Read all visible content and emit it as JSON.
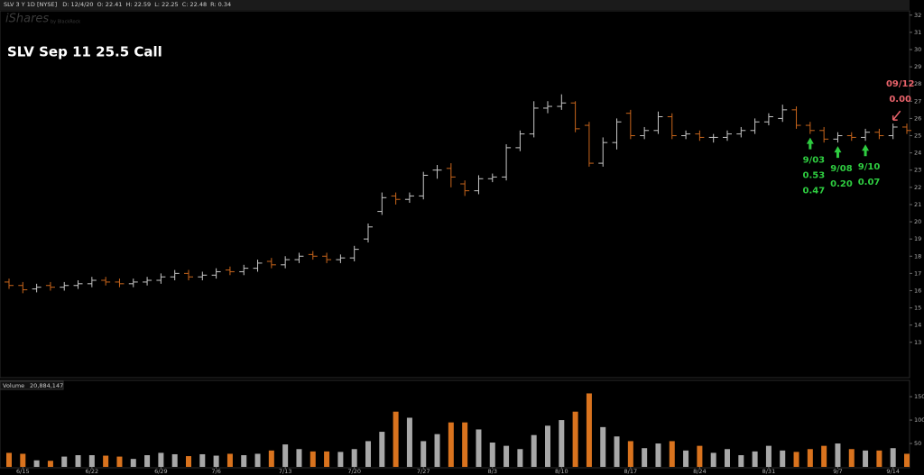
{
  "header": {
    "symbol": "SLV 3 Y 1D [NYSE]",
    "fields": [
      "D: 12/4/20",
      "O: 22.41",
      "H: 22.59",
      "L: 22.25",
      "C: 22.48",
      "R: 0.34"
    ]
  },
  "watermark": {
    "brand": "iShares",
    "sub": "by BlackRock"
  },
  "chart_data": [
    {
      "type": "ohlc",
      "title": "SLV Sep 11 25.5 Call",
      "categories": [
        null,
        "6/15",
        null,
        null,
        null,
        null,
        "6/22",
        null,
        null,
        null,
        null,
        "6/29",
        null,
        null,
        null,
        "7/6",
        null,
        null,
        null,
        null,
        "7/13",
        null,
        null,
        null,
        null,
        "7/20",
        null,
        null,
        null,
        null,
        "7/27",
        null,
        null,
        null,
        null,
        "8/3",
        null,
        null,
        null,
        null,
        "8/10",
        null,
        null,
        null,
        null,
        "8/17",
        null,
        null,
        null,
        null,
        "8/24",
        null,
        null,
        null,
        null,
        "8/31",
        null,
        null,
        null,
        null,
        "9/7",
        null,
        null,
        null,
        "9/14",
        null
      ],
      "open": [
        16.5,
        16.3,
        16.1,
        16.3,
        16.2,
        16.3,
        16.4,
        16.6,
        16.5,
        16.4,
        16.5,
        16.6,
        16.8,
        17.0,
        16.8,
        16.9,
        17.2,
        17.1,
        17.3,
        17.7,
        17.5,
        17.8,
        18.1,
        18.0,
        17.8,
        17.9,
        19.0,
        20.6,
        21.5,
        21.3,
        21.5,
        23.0,
        23.1,
        22.2,
        21.8,
        22.5,
        22.6,
        24.3,
        25.1,
        26.6,
        26.7,
        26.9,
        25.6,
        23.4,
        24.6,
        26.3,
        25.0,
        25.3,
        26.1,
        25.0,
        25.1,
        24.9,
        24.9,
        25.1,
        25.3,
        25.8,
        26.0,
        26.5,
        25.6,
        25.3,
        24.8,
        25.0,
        24.9,
        25.2,
        25.0,
        25.5
      ],
      "high": [
        16.7,
        16.5,
        16.4,
        16.5,
        16.5,
        16.6,
        16.8,
        16.8,
        16.7,
        16.7,
        16.8,
        17.0,
        17.2,
        17.2,
        17.1,
        17.3,
        17.4,
        17.5,
        17.8,
        17.9,
        18.0,
        18.2,
        18.3,
        18.2,
        18.1,
        18.6,
        19.9,
        21.7,
        21.7,
        21.7,
        22.9,
        23.3,
        23.4,
        22.4,
        22.7,
        22.8,
        24.5,
        25.3,
        27.0,
        27.0,
        27.4,
        27.0,
        25.8,
        24.9,
        26.0,
        26.5,
        25.5,
        26.4,
        26.3,
        25.3,
        25.3,
        25.1,
        25.3,
        25.5,
        26.0,
        26.3,
        26.8,
        26.7,
        25.8,
        25.5,
        25.2,
        25.2,
        25.4,
        25.4,
        25.7,
        25.7
      ],
      "low": [
        16.1,
        15.85,
        15.9,
        16.0,
        16.0,
        16.1,
        16.2,
        16.3,
        16.2,
        16.2,
        16.3,
        16.4,
        16.6,
        16.6,
        16.6,
        16.7,
        16.9,
        16.9,
        17.1,
        17.3,
        17.3,
        17.6,
        17.8,
        17.6,
        17.6,
        17.7,
        18.8,
        20.4,
        21.0,
        21.1,
        21.3,
        22.5,
        22.0,
        21.5,
        21.6,
        22.3,
        22.4,
        24.1,
        24.9,
        26.3,
        26.5,
        25.2,
        23.2,
        23.2,
        24.2,
        24.8,
        24.8,
        25.1,
        24.8,
        24.8,
        24.7,
        24.6,
        24.7,
        24.9,
        25.1,
        25.6,
        25.8,
        25.4,
        25.1,
        24.6,
        24.6,
        24.7,
        24.7,
        24.8,
        24.8,
        25.1
      ],
      "close": [
        16.3,
        16.05,
        16.2,
        16.2,
        16.3,
        16.4,
        16.6,
        16.5,
        16.4,
        16.5,
        16.6,
        16.8,
        17.0,
        16.8,
        16.9,
        17.1,
        17.1,
        17.3,
        17.6,
        17.5,
        17.8,
        18.0,
        18.0,
        17.8,
        17.9,
        18.4,
        19.7,
        21.4,
        21.3,
        21.5,
        22.7,
        23.0,
        22.6,
        21.8,
        22.5,
        22.6,
        24.3,
        25.1,
        26.6,
        26.7,
        26.9,
        25.4,
        23.4,
        24.6,
        25.8,
        25.0,
        25.3,
        26.1,
        25.0,
        25.1,
        24.9,
        24.9,
        25.1,
        25.3,
        25.8,
        26.1,
        26.5,
        25.6,
        25.3,
        24.8,
        25.0,
        24.9,
        25.2,
        25.0,
        25.5,
        25.3
      ],
      "up_color": "#c8c8c8",
      "down_color": "#c8651b",
      "ylim": [
        11,
        32.25
      ],
      "yticks": [
        13,
        14,
        15,
        16,
        17,
        18,
        19,
        20,
        21,
        22,
        23,
        24,
        25,
        26,
        27,
        28,
        29,
        30,
        31,
        32
      ],
      "annotations": [
        {
          "lines": [
            "9/03",
            "0.53",
            "0.47"
          ],
          "color": "#2ecc40"
        },
        {
          "lines": [
            "9/08",
            "0.20"
          ],
          "color": "#2ecc40"
        },
        {
          "lines": [
            "9/10",
            "0.07"
          ],
          "color": "#2ecc40"
        },
        {
          "lines": [
            "09/12",
            "0.00"
          ],
          "color": "#e8626a"
        }
      ]
    },
    {
      "type": "volume",
      "title": "Volume",
      "subtitle": "20,884,147",
      "values": [
        30,
        28,
        14,
        13,
        22,
        25,
        25,
        24,
        22,
        17,
        25,
        30,
        27,
        23,
        27,
        24,
        28,
        25,
        28,
        35,
        48,
        38,
        33,
        33,
        32,
        38,
        55,
        75,
        118,
        105,
        55,
        70,
        95,
        95,
        80,
        52,
        45,
        38,
        68,
        88,
        100,
        118,
        157,
        85,
        65,
        55,
        40,
        50,
        55,
        35,
        45,
        30,
        38,
        25,
        33,
        45,
        35,
        32,
        38,
        45,
        50,
        38,
        35,
        35,
        40,
        28
      ],
      "up_color": "#a8a8a8",
      "down_color": "#d9731e",
      "ylim": [
        0,
        181
      ],
      "yticks": [
        50,
        100,
        150
      ]
    }
  ]
}
